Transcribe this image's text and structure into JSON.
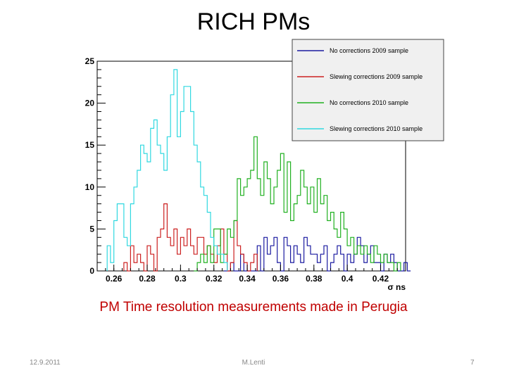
{
  "slide": {
    "title": "RICH PMs",
    "caption": "PM Time resolution measurements made in Perugia",
    "date": "12.9.2011",
    "author": "M.Lenti",
    "page_number": "7"
  },
  "chart_data": {
    "type": "histogram",
    "xlabel": "σ ns",
    "ylabel": "",
    "xlim": [
      0.25,
      0.435
    ],
    "ylim": [
      0,
      25
    ],
    "x_ticks": [
      "0.26",
      "0.28",
      "0.3",
      "0.32",
      "0.34",
      "0.36",
      "0.38",
      "0.4",
      "0.42"
    ],
    "y_ticks": [
      "0",
      "5",
      "10",
      "15",
      "20",
      "25"
    ],
    "bin_width": 0.002,
    "grid": false,
    "legend_position": "top-right",
    "series": [
      {
        "name": "No corrections 2009 sample",
        "color": "#1a1aa0",
        "x_start": 0.326,
        "values": [
          0,
          0,
          1,
          0,
          0,
          2,
          0,
          0,
          0,
          0,
          3,
          0,
          4,
          2,
          3,
          4,
          1,
          0,
          4,
          3,
          1,
          3,
          2,
          1,
          4,
          3,
          2,
          2,
          1,
          2,
          3,
          0,
          1,
          2,
          3,
          2,
          0,
          2,
          1,
          2,
          4,
          3,
          1,
          2,
          3,
          1,
          1,
          0,
          2,
          1,
          2,
          1,
          0,
          0,
          1,
          0
        ]
      },
      {
        "name": "Slewing corrections 2009 sample",
        "color": "#cc2020",
        "x_start": 0.266,
        "values": [
          1,
          0,
          3,
          1,
          2,
          1,
          0,
          3,
          2,
          0,
          4,
          5,
          8,
          4,
          3,
          5,
          2,
          4,
          3,
          5,
          3,
          2,
          4,
          4,
          2,
          3,
          2,
          1,
          3,
          5,
          2,
          0,
          1,
          6,
          3,
          2,
          1,
          0,
          1,
          2
        ]
      },
      {
        "name": "No corrections 2010 sample",
        "color": "#20b020",
        "x_start": 0.308,
        "values": [
          0,
          1,
          2,
          1,
          3,
          1,
          5,
          5,
          1,
          2,
          5,
          4,
          6,
          11,
          9,
          10,
          11,
          12,
          16,
          11,
          9,
          13,
          11,
          8,
          10,
          12,
          14,
          7,
          13,
          6,
          8,
          9,
          12,
          10,
          8,
          10,
          7,
          11,
          8,
          9,
          6,
          7,
          5,
          4,
          7,
          5,
          3,
          4,
          2,
          3,
          2,
          3,
          2,
          1,
          3,
          2,
          1,
          2,
          1,
          1,
          0,
          1
        ]
      },
      {
        "name": "Slewing corrections  2010 sample",
        "color": "#30d8e0",
        "x_start": 0.256,
        "values": [
          3,
          1,
          6,
          8,
          8,
          4,
          3,
          8,
          10,
          12,
          15,
          14,
          13,
          17,
          18,
          15,
          14,
          12,
          16,
          21,
          24,
          16,
          19,
          22,
          22,
          19,
          15,
          13,
          10,
          9,
          7,
          4,
          3,
          2,
          2,
          1
        ]
      }
    ]
  }
}
